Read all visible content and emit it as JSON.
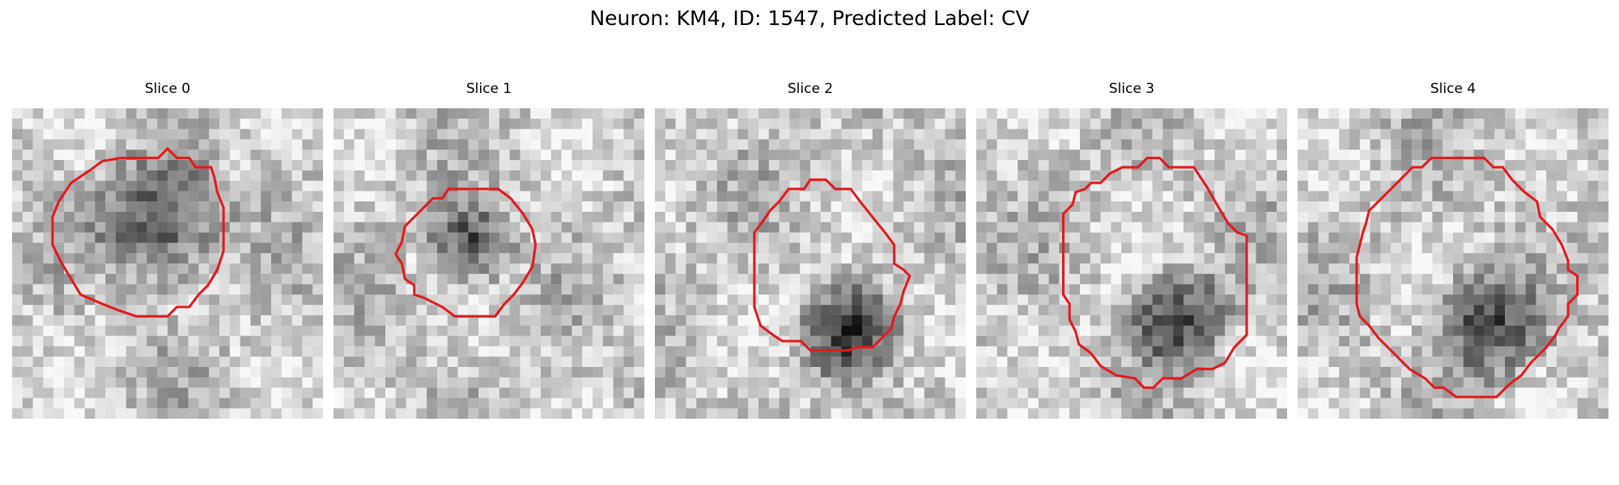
{
  "figure": {
    "title": "Neuron: KM4, ID: 1547, Predicted Label: CV"
  },
  "contour_color": "#e41a1c",
  "panels": [
    {
      "title": "Slice 0",
      "image": "grayscale-cell-patch",
      "dark_blob": [
        0.48,
        0.36,
        0.28
      ],
      "contour": [
        [
          0.5,
          0.13
        ],
        [
          0.53,
          0.16
        ],
        [
          0.57,
          0.16
        ],
        [
          0.59,
          0.19
        ],
        [
          0.64,
          0.19
        ],
        [
          0.65,
          0.22
        ],
        [
          0.66,
          0.27
        ],
        [
          0.68,
          0.32
        ],
        [
          0.68,
          0.46
        ],
        [
          0.66,
          0.52
        ],
        [
          0.63,
          0.57
        ],
        [
          0.6,
          0.6
        ],
        [
          0.57,
          0.64
        ],
        [
          0.53,
          0.64
        ],
        [
          0.5,
          0.67
        ],
        [
          0.4,
          0.67
        ],
        [
          0.34,
          0.65
        ],
        [
          0.29,
          0.63
        ],
        [
          0.22,
          0.6
        ],
        [
          0.19,
          0.55
        ],
        [
          0.16,
          0.5
        ],
        [
          0.13,
          0.44
        ],
        [
          0.13,
          0.35
        ],
        [
          0.15,
          0.3
        ],
        [
          0.19,
          0.24
        ],
        [
          0.25,
          0.2
        ],
        [
          0.29,
          0.17
        ],
        [
          0.35,
          0.16
        ],
        [
          0.47,
          0.16
        ]
      ]
    },
    {
      "title": "Slice 1",
      "image": "grayscale-cell-patch",
      "dark_blob": [
        0.44,
        0.43,
        0.18
      ],
      "contour": [
        [
          0.37,
          0.26
        ],
        [
          0.53,
          0.26
        ],
        [
          0.57,
          0.29
        ],
        [
          0.61,
          0.34
        ],
        [
          0.64,
          0.39
        ],
        [
          0.65,
          0.44
        ],
        [
          0.64,
          0.51
        ],
        [
          0.61,
          0.56
        ],
        [
          0.58,
          0.6
        ],
        [
          0.55,
          0.63
        ],
        [
          0.52,
          0.67
        ],
        [
          0.39,
          0.67
        ],
        [
          0.35,
          0.64
        ],
        [
          0.29,
          0.61
        ],
        [
          0.26,
          0.6
        ],
        [
          0.26,
          0.57
        ],
        [
          0.23,
          0.55
        ],
        [
          0.22,
          0.5
        ],
        [
          0.2,
          0.47
        ],
        [
          0.22,
          0.43
        ],
        [
          0.23,
          0.38
        ],
        [
          0.26,
          0.35
        ],
        [
          0.29,
          0.32
        ],
        [
          0.32,
          0.29
        ],
        [
          0.35,
          0.29
        ]
      ]
    },
    {
      "title": "Slice 2",
      "image": "grayscale-cell-patch",
      "dark_blob": [
        0.62,
        0.72,
        0.2
      ],
      "contour": [
        [
          0.43,
          0.26
        ],
        [
          0.48,
          0.26
        ],
        [
          0.5,
          0.23
        ],
        [
          0.55,
          0.23
        ],
        [
          0.58,
          0.26
        ],
        [
          0.63,
          0.26
        ],
        [
          0.66,
          0.3
        ],
        [
          0.7,
          0.35
        ],
        [
          0.74,
          0.4
        ],
        [
          0.77,
          0.44
        ],
        [
          0.77,
          0.5
        ],
        [
          0.8,
          0.52
        ],
        [
          0.82,
          0.54
        ],
        [
          0.8,
          0.59
        ],
        [
          0.79,
          0.63
        ],
        [
          0.77,
          0.67
        ],
        [
          0.76,
          0.71
        ],
        [
          0.73,
          0.74
        ],
        [
          0.7,
          0.77
        ],
        [
          0.65,
          0.77
        ],
        [
          0.62,
          0.78
        ],
        [
          0.5,
          0.78
        ],
        [
          0.47,
          0.75
        ],
        [
          0.41,
          0.75
        ],
        [
          0.38,
          0.73
        ],
        [
          0.34,
          0.7
        ],
        [
          0.32,
          0.64
        ],
        [
          0.32,
          0.4
        ],
        [
          0.35,
          0.36
        ],
        [
          0.37,
          0.33
        ],
        [
          0.4,
          0.3
        ]
      ]
    },
    {
      "title": "Slice 3",
      "image": "grayscale-cell-patch",
      "dark_blob": [
        0.65,
        0.68,
        0.22
      ],
      "contour": [
        [
          0.47,
          0.19
        ],
        [
          0.52,
          0.19
        ],
        [
          0.55,
          0.16
        ],
        [
          0.59,
          0.16
        ],
        [
          0.62,
          0.19
        ],
        [
          0.7,
          0.19
        ],
        [
          0.74,
          0.25
        ],
        [
          0.78,
          0.32
        ],
        [
          0.81,
          0.37
        ],
        [
          0.84,
          0.4
        ],
        [
          0.87,
          0.41
        ],
        [
          0.87,
          0.73
        ],
        [
          0.83,
          0.77
        ],
        [
          0.8,
          0.82
        ],
        [
          0.76,
          0.84
        ],
        [
          0.71,
          0.84
        ],
        [
          0.66,
          0.87
        ],
        [
          0.6,
          0.87
        ],
        [
          0.57,
          0.9
        ],
        [
          0.54,
          0.9
        ],
        [
          0.51,
          0.87
        ],
        [
          0.45,
          0.86
        ],
        [
          0.4,
          0.83
        ],
        [
          0.37,
          0.79
        ],
        [
          0.33,
          0.76
        ],
        [
          0.32,
          0.72
        ],
        [
          0.3,
          0.68
        ],
        [
          0.3,
          0.63
        ],
        [
          0.28,
          0.6
        ],
        [
          0.28,
          0.34
        ],
        [
          0.31,
          0.31
        ],
        [
          0.32,
          0.27
        ],
        [
          0.35,
          0.26
        ],
        [
          0.37,
          0.24
        ],
        [
          0.4,
          0.24
        ],
        [
          0.43,
          0.21
        ]
      ]
    },
    {
      "title": "Slice 4",
      "image": "grayscale-cell-patch",
      "dark_blob": [
        0.6,
        0.7,
        0.24
      ],
      "contour": [
        [
          0.43,
          0.16
        ],
        [
          0.6,
          0.16
        ],
        [
          0.63,
          0.19
        ],
        [
          0.66,
          0.19
        ],
        [
          0.69,
          0.23
        ],
        [
          0.73,
          0.27
        ],
        [
          0.77,
          0.3
        ],
        [
          0.78,
          0.35
        ],
        [
          0.82,
          0.39
        ],
        [
          0.85,
          0.44
        ],
        [
          0.87,
          0.49
        ],
        [
          0.87,
          0.52
        ],
        [
          0.9,
          0.54
        ],
        [
          0.9,
          0.6
        ],
        [
          0.87,
          0.63
        ],
        [
          0.87,
          0.67
        ],
        [
          0.84,
          0.71
        ],
        [
          0.83,
          0.73
        ],
        [
          0.8,
          0.77
        ],
        [
          0.77,
          0.8
        ],
        [
          0.75,
          0.82
        ],
        [
          0.72,
          0.86
        ],
        [
          0.68,
          0.89
        ],
        [
          0.64,
          0.93
        ],
        [
          0.51,
          0.93
        ],
        [
          0.47,
          0.9
        ],
        [
          0.44,
          0.9
        ],
        [
          0.41,
          0.87
        ],
        [
          0.36,
          0.84
        ],
        [
          0.32,
          0.8
        ],
        [
          0.28,
          0.76
        ],
        [
          0.26,
          0.74
        ],
        [
          0.23,
          0.7
        ],
        [
          0.2,
          0.67
        ],
        [
          0.19,
          0.63
        ],
        [
          0.19,
          0.48
        ],
        [
          0.2,
          0.44
        ],
        [
          0.21,
          0.4
        ],
        [
          0.22,
          0.37
        ],
        [
          0.23,
          0.33
        ],
        [
          0.26,
          0.3
        ],
        [
          0.3,
          0.26
        ],
        [
          0.34,
          0.22
        ],
        [
          0.37,
          0.19
        ],
        [
          0.4,
          0.19
        ]
      ]
    }
  ]
}
